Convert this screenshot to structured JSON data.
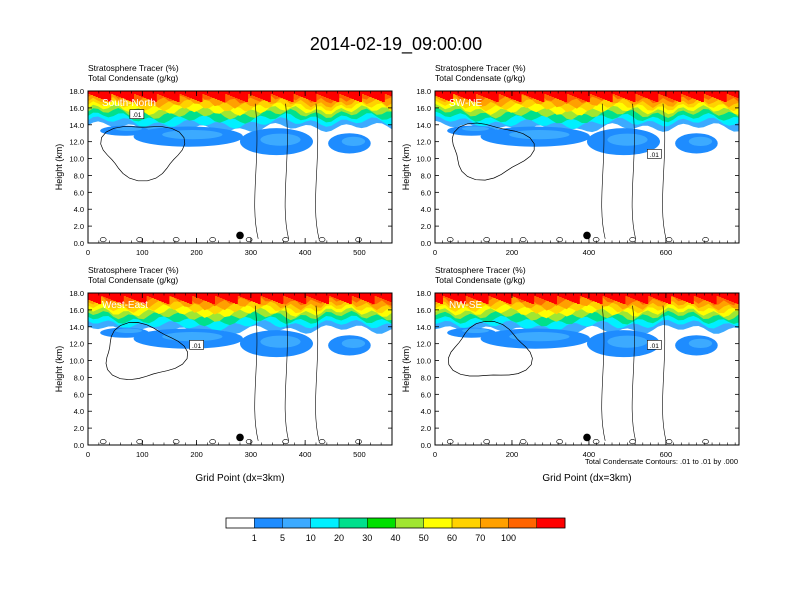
{
  "figure": {
    "title": "2014-02-19_09:00:00",
    "footnote": "Total Condensate Contours: .01 to .01 by .000",
    "colorbar": {
      "colors": [
        "#ffffff",
        "#1e8cff",
        "#3caaff",
        "#00f0ff",
        "#00e08c",
        "#00e000",
        "#a0e632",
        "#ffff00",
        "#ffd200",
        "#ffa000",
        "#ff6400",
        "#ff0000"
      ],
      "labels": [
        "1",
        "5",
        "10",
        "20",
        "30",
        "40",
        "50",
        "60",
        "70",
        "100"
      ]
    }
  },
  "chart_data": [
    {
      "type": "heatmap",
      "panel": "South-North",
      "subtitle_1": "Stratosphere Tracer   (%)",
      "subtitle_2": "Total Condensate   (g/kg)",
      "xlabel": "",
      "ylabel": "Height (km)",
      "xlim": [
        0,
        560
      ],
      "ylim": [
        0,
        18
      ],
      "x_ticks": [
        0,
        100,
        200,
        300,
        400,
        500
      ],
      "y_ticks": [
        "0.0",
        "2.0",
        "4.0",
        "6.0",
        "8.0",
        "10.0",
        "12.0",
        "14.0",
        "16.0",
        "18.0"
      ],
      "marker_x": 280,
      "contour_label": ".01",
      "contour_label_x": 90,
      "contour_label_y": 15.2
    },
    {
      "type": "heatmap",
      "panel": "SW-NE",
      "subtitle_1": "Stratosphere Tracer   (%)",
      "subtitle_2": "Total Condensate   (g/kg)",
      "xlabel": "",
      "ylabel": "Height (km)",
      "xlim": [
        0,
        790
      ],
      "ylim": [
        0,
        18
      ],
      "x_ticks": [
        0,
        200,
        400,
        600
      ],
      "y_ticks": [
        "0.0",
        "2.0",
        "4.0",
        "6.0",
        "8.0",
        "10.0",
        "12.0",
        "14.0",
        "16.0",
        "18.0"
      ],
      "marker_x": 395,
      "contour_label": ".01",
      "contour_label_x": 570,
      "contour_label_y": 10.5
    },
    {
      "type": "heatmap",
      "panel": "West-East",
      "subtitle_1": "Stratosphere Tracer   (%)",
      "subtitle_2": "Total Condensate   (g/kg)",
      "xlabel": "Grid Point (dx=3km)",
      "ylabel": "Height (km)",
      "xlim": [
        0,
        560
      ],
      "ylim": [
        0,
        18
      ],
      "x_ticks": [
        0,
        100,
        200,
        300,
        400,
        500
      ],
      "y_ticks": [
        "0.0",
        "2.0",
        "4.0",
        "6.0",
        "8.0",
        "10.0",
        "12.0",
        "14.0",
        "16.0",
        "18.0"
      ],
      "marker_x": 280,
      "contour_label": ".01",
      "contour_label_x": 200,
      "contour_label_y": 11.8
    },
    {
      "type": "heatmap",
      "panel": "NW-SE",
      "subtitle_1": "Stratosphere Tracer   (%)",
      "subtitle_2": "Total Condensate   (g/kg)",
      "xlabel": "Grid Point (dx=3km)",
      "ylabel": "Height (km)",
      "xlim": [
        0,
        790
      ],
      "ylim": [
        0,
        18
      ],
      "x_ticks": [
        0,
        200,
        400,
        600
      ],
      "y_ticks": [
        "0.0",
        "2.0",
        "4.0",
        "6.0",
        "8.0",
        "10.0",
        "12.0",
        "14.0",
        "16.0",
        "18.0"
      ],
      "marker_x": 395,
      "contour_label": ".01",
      "contour_label_x": 570,
      "contour_label_y": 11.8
    }
  ]
}
